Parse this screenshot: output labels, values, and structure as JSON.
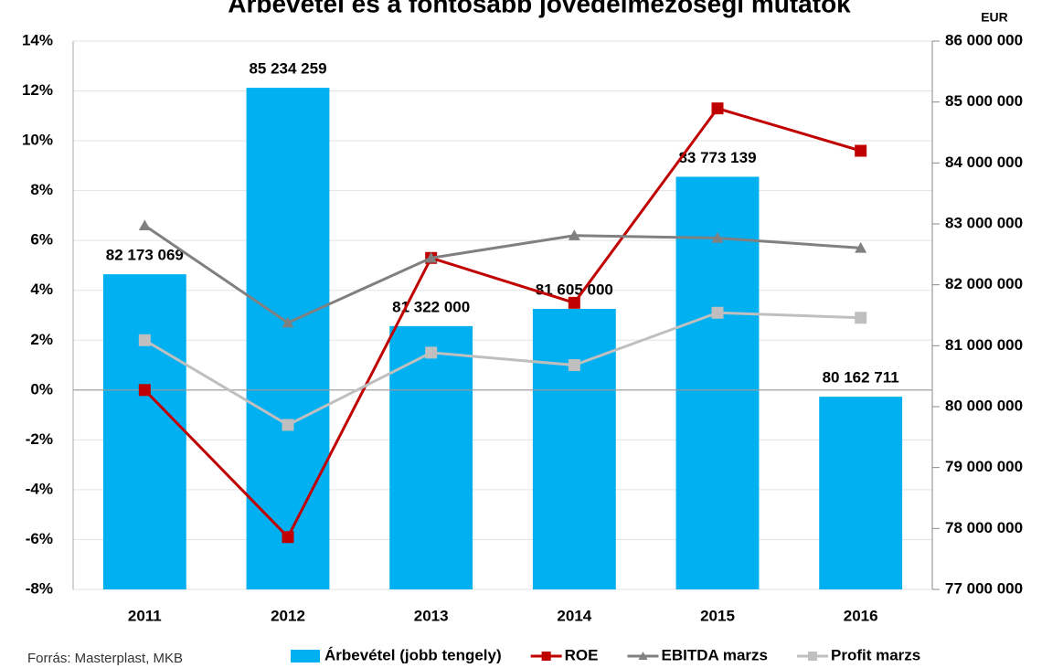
{
  "chart_data": {
    "type": "bar",
    "title": "Árbevétel és a fontosabb jövedelmezőségi mutatók",
    "y2_label": "EUR",
    "source": "Forrás: Masterplast, MKB",
    "categories": [
      "2011",
      "2012",
      "2013",
      "2014",
      "2015",
      "2016"
    ],
    "series": [
      {
        "name": "Árbevétel (jobb tengely)",
        "type": "bar",
        "axis": "y2",
        "color": "#00b0f0",
        "values": [
          82173069,
          85234259,
          81322000,
          81605000,
          83773139,
          80162711
        ],
        "value_labels": [
          "82 173 069",
          "85 234 259",
          "81 322 000",
          "81 605 000",
          "83 773 139",
          "80 162 711"
        ]
      },
      {
        "name": "ROE",
        "type": "line",
        "marker": "square",
        "color": "#c00000",
        "values": [
          0,
          -5.9,
          5.3,
          3.5,
          11.3,
          9.6
        ]
      },
      {
        "name": "EBITDA marzs",
        "type": "line",
        "marker": "triangle",
        "color": "#808080",
        "values": [
          6.6,
          2.7,
          5.3,
          6.2,
          6.1,
          5.7
        ]
      },
      {
        "name": "Profit marzs",
        "type": "line",
        "marker": "square",
        "color": "#bfbfbf",
        "values": [
          2.0,
          -1.4,
          1.5,
          1.0,
          3.1,
          2.9
        ]
      }
    ],
    "ylim": [
      -8,
      14
    ],
    "yticks": [
      {
        "value": -8,
        "label": "-8%"
      },
      {
        "value": -6,
        "label": "-6%"
      },
      {
        "value": -4,
        "label": "-4%"
      },
      {
        "value": -2,
        "label": "-2%"
      },
      {
        "value": 0,
        "label": "0%"
      },
      {
        "value": 2,
        "label": "2%"
      },
      {
        "value": 4,
        "label": "4%"
      },
      {
        "value": 6,
        "label": "6%"
      },
      {
        "value": 8,
        "label": "8%"
      },
      {
        "value": 10,
        "label": "10%"
      },
      {
        "value": 12,
        "label": "12%"
      },
      {
        "value": 14,
        "label": "14%"
      }
    ],
    "y2lim": [
      77000000,
      86000000
    ],
    "y2ticks": [
      {
        "value": 77000000,
        "label": "77 000 000"
      },
      {
        "value": 78000000,
        "label": "78 000 000"
      },
      {
        "value": 79000000,
        "label": "79 000 000"
      },
      {
        "value": 80000000,
        "label": "80 000 000"
      },
      {
        "value": 81000000,
        "label": "81 000 000"
      },
      {
        "value": 82000000,
        "label": "82 000 000"
      },
      {
        "value": 83000000,
        "label": "83 000 000"
      },
      {
        "value": 84000000,
        "label": "84 000 000"
      },
      {
        "value": 85000000,
        "label": "85 000 000"
      },
      {
        "value": 86000000,
        "label": "86 000 000"
      }
    ],
    "grid": true,
    "legend": "bottom"
  }
}
